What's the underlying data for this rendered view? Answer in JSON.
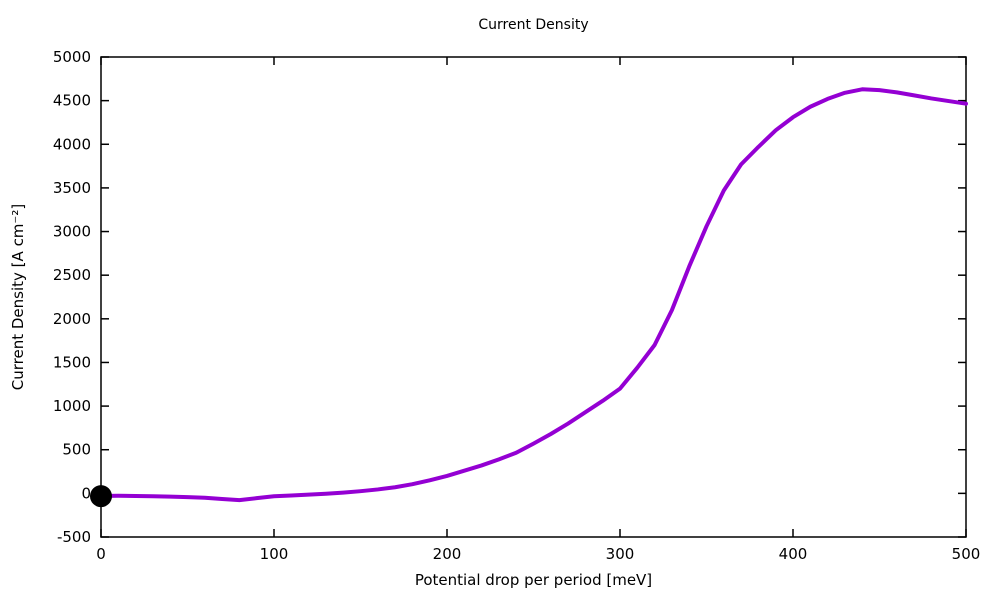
{
  "chart_data": {
    "type": "line",
    "title": "Current Density",
    "xlabel": "Potential drop per period [meV]",
    "ylabel": "Current Density [A cm⁻²]",
    "xlim": [
      0,
      500
    ],
    "ylim": [
      -500,
      5000
    ],
    "xticks": [
      0,
      100,
      200,
      300,
      400,
      500
    ],
    "yticks": [
      -500,
      0,
      500,
      1000,
      1500,
      2000,
      2500,
      3000,
      3500,
      4000,
      4500,
      5000
    ],
    "grid": false,
    "legend": "none",
    "series": [
      {
        "name": "current-density-curve",
        "color": "#9400d3",
        "line_width": 4,
        "x": [
          0,
          10,
          20,
          30,
          40,
          50,
          60,
          70,
          80,
          90,
          100,
          110,
          120,
          130,
          140,
          150,
          160,
          170,
          180,
          190,
          200,
          210,
          220,
          230,
          240,
          250,
          260,
          270,
          280,
          290,
          300,
          310,
          320,
          330,
          340,
          350,
          360,
          370,
          380,
          390,
          400,
          410,
          420,
          430,
          440,
          450,
          460,
          470,
          480,
          490,
          500
        ],
        "y": [
          -30,
          -28,
          -30,
          -33,
          -37,
          -43,
          -50,
          -65,
          -78,
          -55,
          -33,
          -25,
          -15,
          -5,
          8,
          25,
          45,
          70,
          105,
          150,
          200,
          260,
          320,
          390,
          465,
          570,
          680,
          800,
          930,
          1060,
          1200,
          1440,
          1700,
          2100,
          2600,
          3060,
          3470,
          3770,
          3970,
          4160,
          4310,
          4430,
          4520,
          4590,
          4630,
          4620,
          4595,
          4560,
          4525,
          4495,
          4465
        ]
      }
    ],
    "markers": [
      {
        "name": "origin-point",
        "x": 0,
        "y": -32,
        "color": "#000000",
        "radius": 11
      }
    ],
    "colors": {
      "background": "#ffffff",
      "axis": "#000000",
      "text": "#000000",
      "curve": "#9400d3",
      "marker": "#000000"
    }
  }
}
